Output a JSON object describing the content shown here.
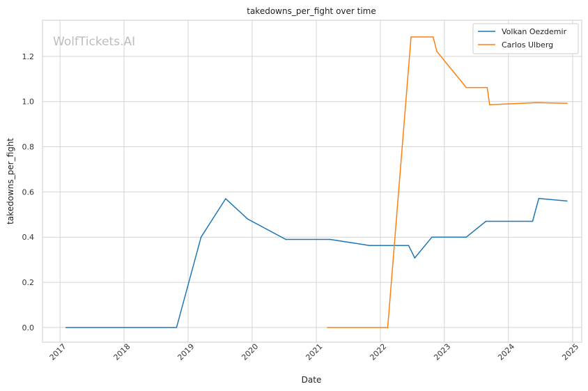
{
  "chart_data": {
    "type": "line",
    "title": "takedowns_per_fight over time",
    "xlabel": "Date",
    "ylabel": "takedowns_per_fight",
    "watermark": "WolfTickets.AI",
    "x_ticks": [
      "2017",
      "2018",
      "2019",
      "2020",
      "2021",
      "2022",
      "2023",
      "2024",
      "2025"
    ],
    "y_ticks": [
      "0.0",
      "0.2",
      "0.4",
      "0.6",
      "0.8",
      "1.0",
      "1.2"
    ],
    "xlim": [
      "2016-09-23",
      "2025-02-22"
    ],
    "ylim": [
      -0.065,
      1.36
    ],
    "grid": true,
    "legend_position": "top-right",
    "series": [
      {
        "name": "Volkan Oezdemir",
        "color": "#1f77b4",
        "points": [
          [
            "2017-02-04",
            0.0
          ],
          [
            "2018-10-27",
            0.0
          ],
          [
            "2019-03-16",
            0.4
          ],
          [
            "2019-08-03",
            0.57
          ],
          [
            "2019-12-07",
            0.48
          ],
          [
            "2020-07-11",
            0.39
          ],
          [
            "2021-03-20",
            0.39
          ],
          [
            "2021-10-30",
            0.363
          ],
          [
            "2022-06-11",
            0.363
          ],
          [
            "2022-07-16",
            0.308
          ],
          [
            "2022-10-22",
            0.4
          ],
          [
            "2023-05-06",
            0.4
          ],
          [
            "2023-08-26",
            0.47
          ],
          [
            "2024-05-18",
            0.47
          ],
          [
            "2024-06-22",
            0.571
          ],
          [
            "2024-11-30",
            0.56
          ]
        ]
      },
      {
        "name": "Carlos Ulberg",
        "color": "#ff7f0e",
        "points": [
          [
            "2021-03-06",
            0.0
          ],
          [
            "2022-02-12",
            0.0
          ],
          [
            "2022-06-25",
            1.286
          ],
          [
            "2022-10-29",
            1.286
          ],
          [
            "2022-11-19",
            1.222
          ],
          [
            "2023-05-06",
            1.062
          ],
          [
            "2023-09-02",
            1.062
          ],
          [
            "2023-09-16",
            0.986
          ],
          [
            "2024-01-06",
            0.99
          ],
          [
            "2024-06-08",
            0.995
          ],
          [
            "2024-11-30",
            0.992
          ]
        ]
      }
    ]
  }
}
